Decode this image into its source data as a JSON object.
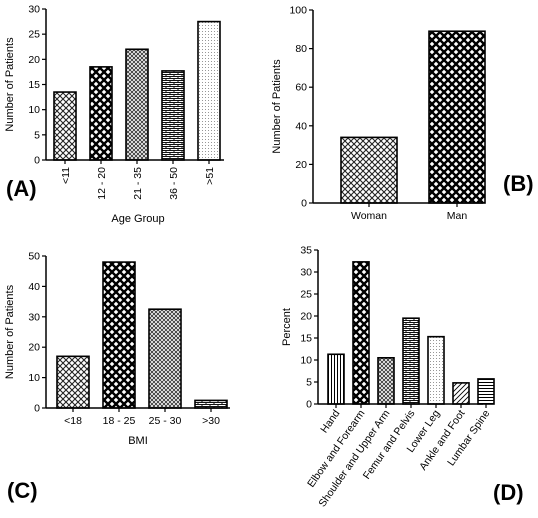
{
  "chart_data": [
    {
      "type": "bar",
      "panel_label": "(A)",
      "xlabel": "Age Group",
      "ylabel": "Number of Patients",
      "categories": [
        "<11",
        "12 - 20",
        "21 - 35",
        "36 - 50",
        ">51"
      ],
      "values": [
        13.5,
        18.5,
        22,
        17.7,
        27.5
      ],
      "ylim": [
        0,
        30
      ],
      "yticks": [
        0,
        5,
        10,
        15,
        20,
        25,
        30
      ],
      "xtick_rotation": "vertical",
      "patterns": [
        "diamond",
        "chain",
        "crosshatch",
        "brick",
        "dots"
      ]
    },
    {
      "type": "bar",
      "panel_label": "(B)",
      "xlabel": "",
      "ylabel": "Number of Patients",
      "categories": [
        "Woman",
        "Man"
      ],
      "values": [
        34,
        89
      ],
      "ylim": [
        0,
        100
      ],
      "yticks": [
        0,
        20,
        40,
        60,
        80,
        100
      ],
      "xtick_rotation": "horizontal",
      "patterns": [
        "diamond",
        "chain"
      ]
    },
    {
      "type": "bar",
      "panel_label": "(C)",
      "xlabel": "BMI",
      "ylabel": "Number of Patients",
      "categories": [
        "<18",
        "18 - 25",
        "25 - 30",
        ">30"
      ],
      "values": [
        17,
        48,
        32.5,
        2.5
      ],
      "ylim": [
        0,
        50
      ],
      "yticks": [
        0,
        10,
        20,
        30,
        40,
        50
      ],
      "xtick_rotation": "horizontal",
      "patterns": [
        "diamond",
        "chain",
        "crosshatch",
        "brick"
      ]
    },
    {
      "type": "bar",
      "panel_label": "(D)",
      "xlabel": "",
      "ylabel": "Percent",
      "categories": [
        "Hand",
        "Elbow and Forearm",
        "Shoulder and Upper Arm",
        "Femur and Pelvis",
        "Lower Leg",
        "Ankle and Foot",
        "Lumbar Spine"
      ],
      "values": [
        11.3,
        32.3,
        10.5,
        19.5,
        15.3,
        4.8,
        5.7
      ],
      "ylim": [
        0,
        35
      ],
      "yticks": [
        0,
        5,
        10,
        15,
        20,
        25,
        30,
        35
      ],
      "xtick_rotation": "diagonal",
      "patterns": [
        "vlines",
        "chain",
        "crosshatch",
        "brick",
        "dots",
        "diag",
        "hlines"
      ]
    }
  ]
}
